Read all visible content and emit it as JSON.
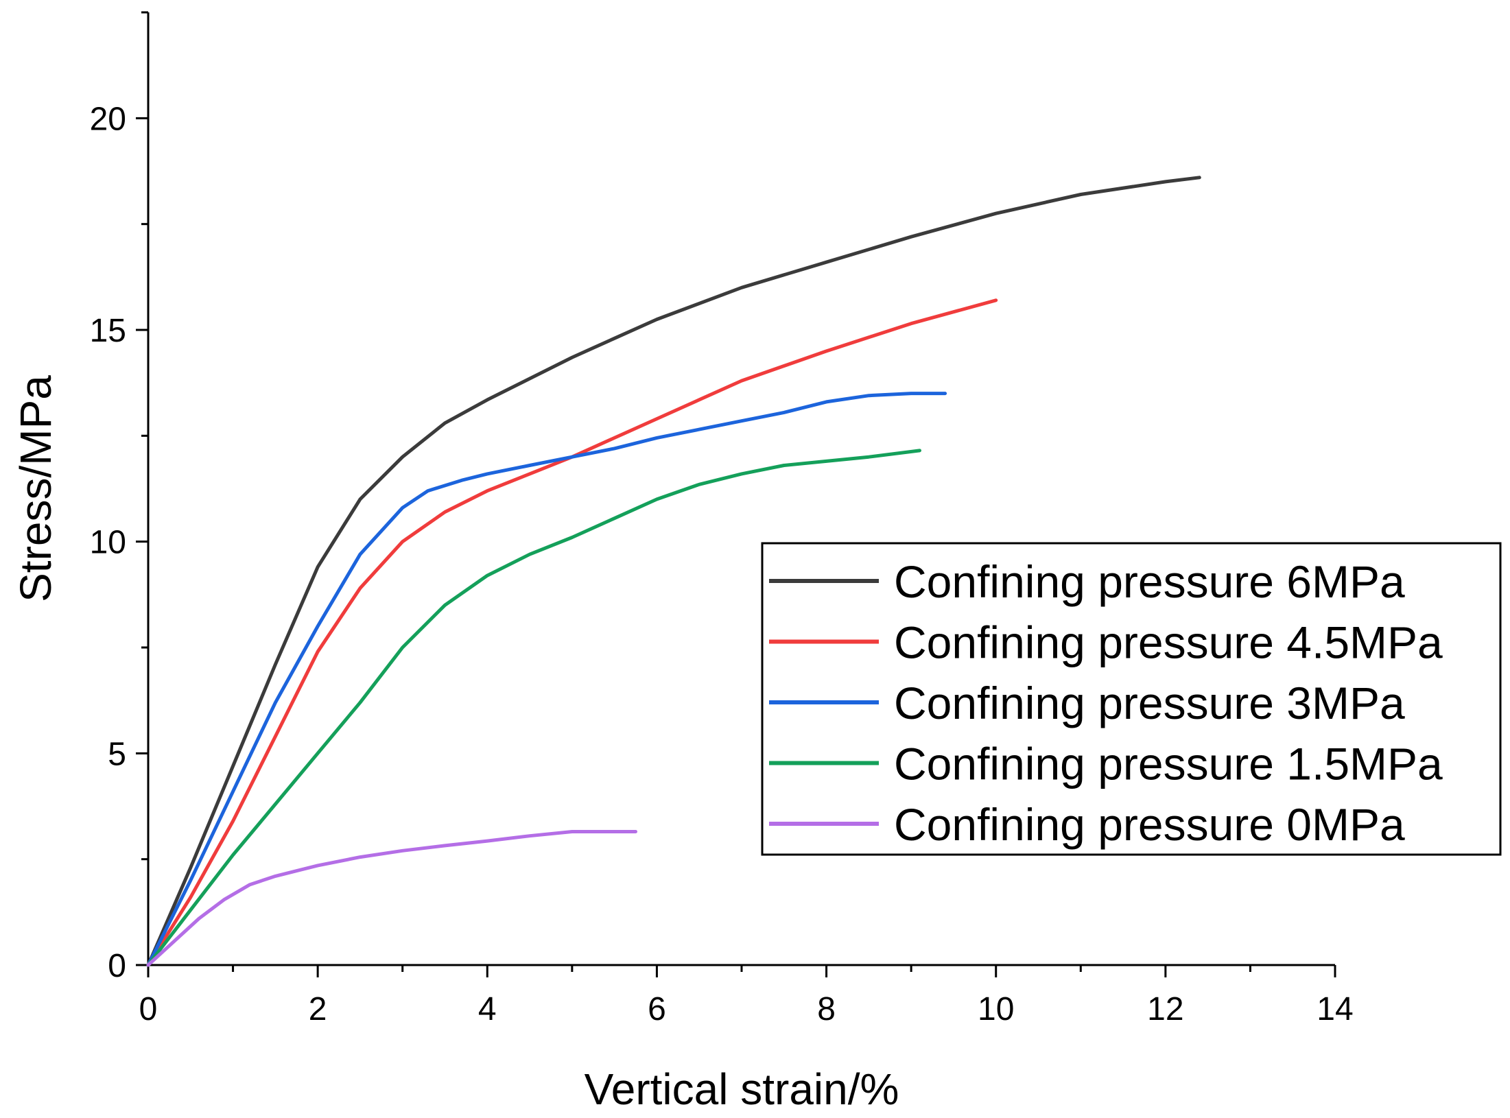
{
  "chart_data": {
    "type": "line",
    "title": "",
    "xlabel": "Vertical strain/%",
    "ylabel": "Stress/MPa",
    "xlim": [
      0,
      14
    ],
    "ylim": [
      0,
      22.5
    ],
    "xticks": [
      0,
      2,
      4,
      6,
      8,
      10,
      12,
      14
    ],
    "xtick_labels": [
      "0",
      "2",
      "4",
      "6",
      "8",
      "10",
      "12",
      "14"
    ],
    "yticks": [
      0,
      5,
      10,
      15,
      20
    ],
    "ytick_labels": [
      "0",
      "5",
      "10",
      "15",
      "20"
    ],
    "grid": false,
    "legend_position": "center-right",
    "series": [
      {
        "name": "Confining pressure 6MPa",
        "color": "#3b3b3b",
        "x": [
          0,
          0.5,
          1.0,
          1.5,
          2.0,
          2.5,
          3.0,
          3.5,
          4.0,
          4.5,
          5.0,
          5.5,
          6.0,
          7.0,
          8.0,
          9.0,
          10.0,
          11.0,
          12.0,
          12.4
        ],
        "y": [
          0,
          2.3,
          4.7,
          7.1,
          9.4,
          11.0,
          12.0,
          12.8,
          13.35,
          13.85,
          14.35,
          14.8,
          15.25,
          16.0,
          16.6,
          17.2,
          17.75,
          18.2,
          18.5,
          18.6
        ]
      },
      {
        "name": "Confining pressure 4.5MPa",
        "color": "#f03c3c",
        "x": [
          0,
          0.5,
          1.0,
          1.5,
          2.0,
          2.5,
          3.0,
          3.5,
          4.0,
          4.5,
          5.0,
          5.5,
          6.0,
          7.0,
          8.0,
          9.0,
          10.0
        ],
        "y": [
          0,
          1.6,
          3.4,
          5.4,
          7.4,
          8.9,
          10.0,
          10.7,
          11.2,
          11.6,
          12.0,
          12.45,
          12.9,
          13.8,
          14.5,
          15.15,
          15.7
        ]
      },
      {
        "name": "Confining pressure 3MPa",
        "color": "#1c64dc",
        "x": [
          0,
          0.5,
          1.0,
          1.5,
          2.0,
          2.5,
          3.0,
          3.3,
          3.7,
          4.0,
          4.5,
          5.0,
          5.5,
          6.0,
          6.5,
          7.0,
          7.5,
          8.0,
          8.5,
          9.0,
          9.4
        ],
        "y": [
          0,
          2.0,
          4.1,
          6.2,
          8.0,
          9.7,
          10.8,
          11.2,
          11.45,
          11.6,
          11.8,
          12.0,
          12.2,
          12.45,
          12.65,
          12.85,
          13.05,
          13.3,
          13.45,
          13.5,
          13.5
        ]
      },
      {
        "name": "Confining pressure 1.5MPa",
        "color": "#14a05a",
        "x": [
          0,
          0.5,
          1.0,
          1.5,
          2.0,
          2.5,
          3.0,
          3.5,
          4.0,
          4.5,
          5.0,
          5.5,
          6.0,
          6.5,
          7.0,
          7.5,
          8.0,
          8.5,
          9.1
        ],
        "y": [
          0,
          1.3,
          2.6,
          3.8,
          5.0,
          6.2,
          7.5,
          8.5,
          9.2,
          9.7,
          10.1,
          10.55,
          11.0,
          11.35,
          11.6,
          11.8,
          11.9,
          12.0,
          12.15
        ]
      },
      {
        "name": "Confining pressure 0MPa",
        "color": "#b46ee6",
        "x": [
          0,
          0.3,
          0.6,
          0.9,
          1.2,
          1.5,
          2.0,
          2.5,
          3.0,
          3.5,
          4.0,
          4.5,
          5.0,
          5.5,
          5.75
        ],
        "y": [
          0,
          0.55,
          1.1,
          1.55,
          1.9,
          2.1,
          2.35,
          2.55,
          2.7,
          2.82,
          2.93,
          3.05,
          3.15,
          3.15,
          3.15
        ]
      }
    ]
  }
}
